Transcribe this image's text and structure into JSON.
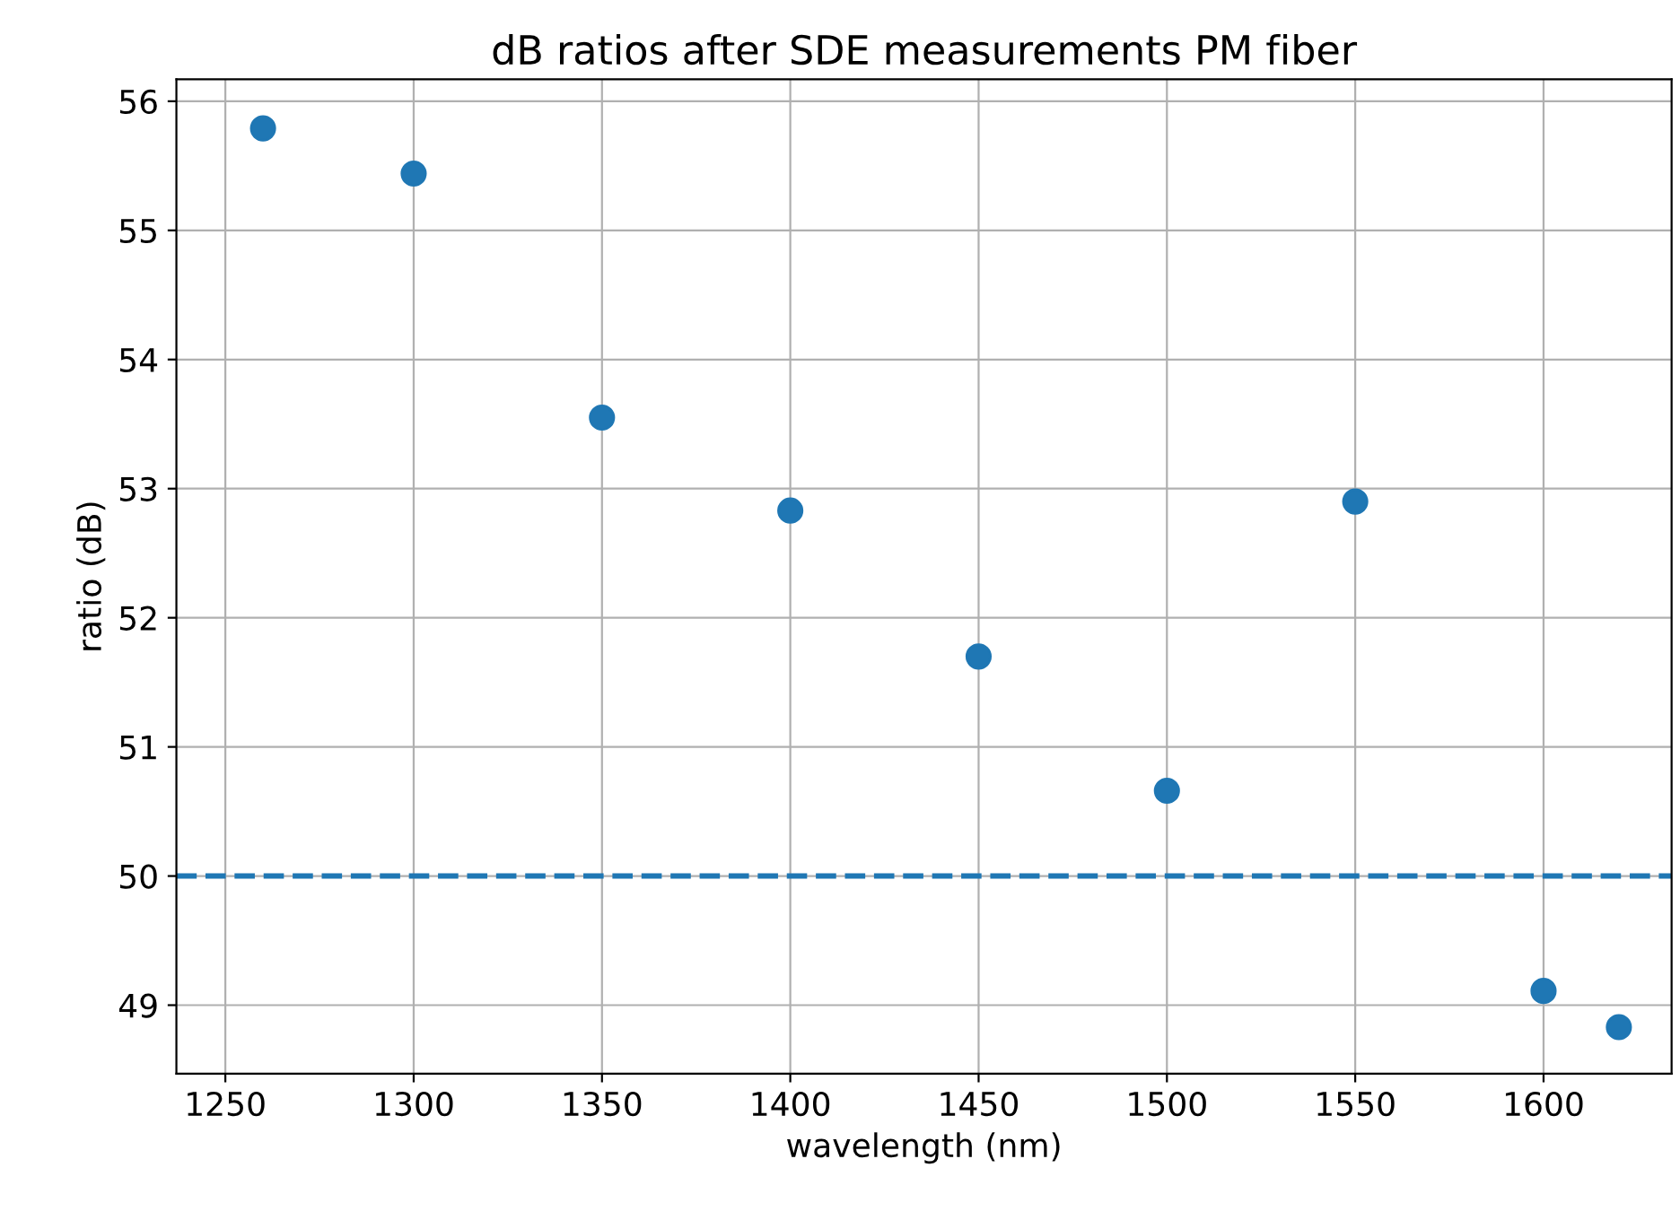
{
  "chart_data": {
    "type": "scatter",
    "title": "dB ratios after SDE measurements PM fiber",
    "xlabel": "wavelength (nm)",
    "ylabel": "ratio (dB)",
    "x": [
      1260,
      1300,
      1350,
      1400,
      1450,
      1500,
      1550,
      1600,
      1620
    ],
    "series": [
      {
        "color": "#1f77b4",
        "values": [
          55.79,
          55.44,
          53.55,
          52.83,
          51.7,
          50.66,
          52.9,
          49.11,
          48.83
        ]
      }
    ],
    "xlim": [
      1237,
      1634
    ],
    "ylim": [
      48.47,
      56.17
    ],
    "xticks": [
      1250,
      1300,
      1350,
      1400,
      1450,
      1500,
      1550,
      1600
    ],
    "yticks": [
      49,
      50,
      51,
      52,
      53,
      54,
      55,
      56
    ],
    "ref_lines": [
      {
        "axis": "y",
        "value": 50,
        "color": "#1f77b4",
        "line_style": "dashed"
      }
    ],
    "grid": true,
    "marker": "circle"
  }
}
